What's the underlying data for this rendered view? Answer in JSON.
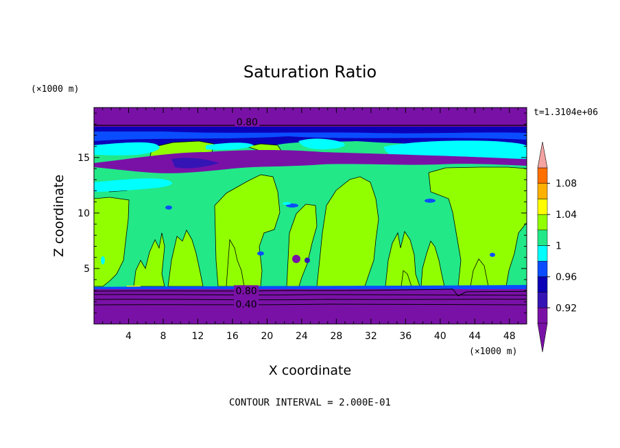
{
  "chart_data": {
    "type": "heatmap",
    "title": "Saturation Ratio",
    "xlabel": "X coordinate",
    "ylabel": "Z coordinate",
    "x_unit": "(×1000 m)",
    "y_unit": "(×1000 m)",
    "time_label": "t=1.3104e+06",
    "footer": "CONTOUR INTERVAL = 2.000E-01",
    "xlim": [
      0,
      50
    ],
    "ylim": [
      0,
      19.5
    ],
    "x_ticks": [
      4,
      8,
      12,
      16,
      20,
      24,
      28,
      32,
      36,
      40,
      44,
      48
    ],
    "y_ticks": [
      5,
      10,
      15
    ],
    "x_tick_labels": [
      "4",
      "8",
      "12",
      "16",
      "20",
      "24",
      "28",
      "32",
      "36",
      "40",
      "44",
      "48"
    ],
    "y_tick_labels": [
      "5",
      "10",
      "15"
    ],
    "colorbar": {
      "levels": [
        0.9,
        0.92,
        0.94,
        0.96,
        0.98,
        1.0,
        1.02,
        1.04,
        1.06,
        1.08,
        1.1
      ],
      "tick_values": [
        0.92,
        0.96,
        1.0,
        1.04,
        1.08
      ],
      "tick_labels": [
        "0.92",
        "0.96",
        "1",
        "1.04",
        "1.08"
      ],
      "colors": [
        "#7a11a7",
        "#3514b5",
        "#0b00b7",
        "#0a4dff",
        "#00ffff",
        "#22e888",
        "#91ff00",
        "#ffff00",
        "#ffb000",
        "#ff7000",
        "#ff2020"
      ],
      "under_color": "#7a11a7",
      "over_color": "#f4a3a3"
    },
    "contour_labels": [
      {
        "text": "0.80",
        "x": 17.7,
        "y": 18.2
      },
      {
        "text": "0.80",
        "x": 17.6,
        "y": 3.0
      },
      {
        "text": "0.40",
        "x": 17.6,
        "y": 1.8
      }
    ],
    "regions": [
      {
        "level": 0.98,
        "y_range": [
          3.3,
          16.9
        ],
        "description": "broad moist layer"
      },
      {
        "level": 1.0,
        "cloud_columns_x": [
          [
            0,
            4
          ],
          [
            8,
            13
          ],
          [
            14,
            19
          ],
          [
            22,
            26
          ],
          [
            26,
            32
          ],
          [
            38,
            42
          ],
          [
            44,
            50
          ]
        ],
        "top_y": 13.5
      },
      {
        "level": 0.9,
        "y_range": [
          0,
          3.3
        ],
        "description": "dry lower layer"
      },
      {
        "level": 0.9,
        "y_range": [
          13.2,
          16.6
        ],
        "description": "dry upper band"
      },
      {
        "level": 0.9,
        "y_range": [
          18.3,
          19.5
        ],
        "description": "dry top layer"
      }
    ]
  }
}
